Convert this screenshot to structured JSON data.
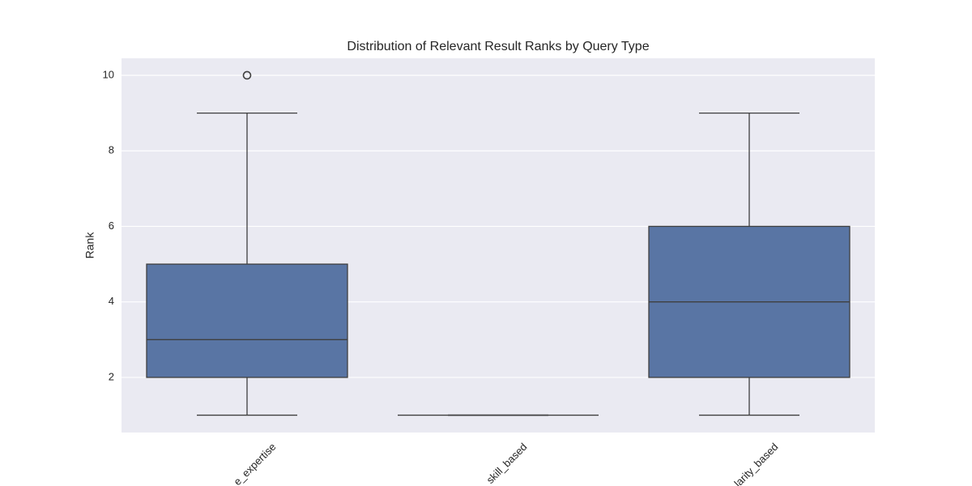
{
  "chart_data": {
    "type": "box",
    "title": "Distribution of Relevant Result Ranks by Query Type",
    "y_label": "Rank",
    "categories": [
      "e_expertise",
      "skill_based",
      "larity_based"
    ],
    "boxes": [
      {
        "min": 1,
        "q1": 2,
        "median": 3,
        "q3": 5,
        "max": 9,
        "outliers": [
          10
        ]
      },
      {
        "min": 1,
        "q1": 1,
        "median": 1,
        "q3": 1,
        "max": 1,
        "outliers": []
      },
      {
        "min": 1,
        "q1": 2,
        "median": 4,
        "q3": 6,
        "max": 9,
        "outliers": []
      }
    ],
    "color": "#5975a4",
    "ylim": [
      0.54,
      10.45
    ],
    "yticks": [
      2,
      4,
      6,
      8,
      10
    ],
    "grid": true
  }
}
